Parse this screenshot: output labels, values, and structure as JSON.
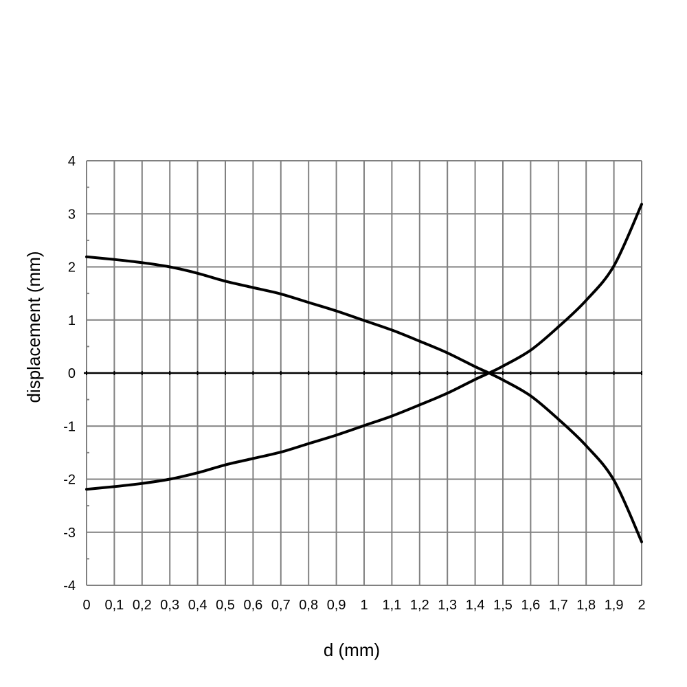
{
  "chart_data": {
    "type": "line",
    "title": "",
    "xlabel": "d (mm)",
    "ylabel": "displacement (mm)",
    "xlim": [
      0,
      2
    ],
    "ylim": [
      -4,
      4
    ],
    "grid": true,
    "x_tick_labels": [
      "0",
      "0,1",
      "0,2",
      "0,3",
      "0,4",
      "0,5",
      "0,6",
      "0,7",
      "0,8",
      "0,9",
      "1",
      "1,1",
      "1,2",
      "1,3",
      "1,4",
      "1,5",
      "1,6",
      "1,7",
      "1,8",
      "1,9",
      "2"
    ],
    "y_tick_labels": [
      "4",
      "3",
      "2",
      "1",
      "0",
      "-1",
      "-2",
      "-3",
      "-4"
    ],
    "x": [
      0,
      0.1,
      0.2,
      0.3,
      0.4,
      0.5,
      0.6,
      0.7,
      0.8,
      0.9,
      1.0,
      1.1,
      1.2,
      1.3,
      1.4,
      1.45,
      1.5,
      1.6,
      1.7,
      1.8,
      1.9,
      2.0
    ],
    "series": [
      {
        "values": [
          2.19,
          2.14,
          2.08,
          2.0,
          1.88,
          1.73,
          1.61,
          1.49,
          1.33,
          1.17,
          0.99,
          0.81,
          0.6,
          0.38,
          0.12,
          0.0,
          -0.13,
          -0.43,
          -0.87,
          -1.37,
          -2.02,
          -3.18
        ]
      },
      {
        "values": [
          -2.19,
          -2.14,
          -2.08,
          -2.0,
          -1.88,
          -1.73,
          -1.61,
          -1.49,
          -1.33,
          -1.17,
          -0.99,
          -0.81,
          -0.6,
          -0.38,
          -0.12,
          0.0,
          0.13,
          0.43,
          0.87,
          1.37,
          2.02,
          3.18
        ]
      }
    ],
    "colors": {
      "line": "#000000",
      "grid": "#808080",
      "zero_line": "#000000"
    }
  }
}
